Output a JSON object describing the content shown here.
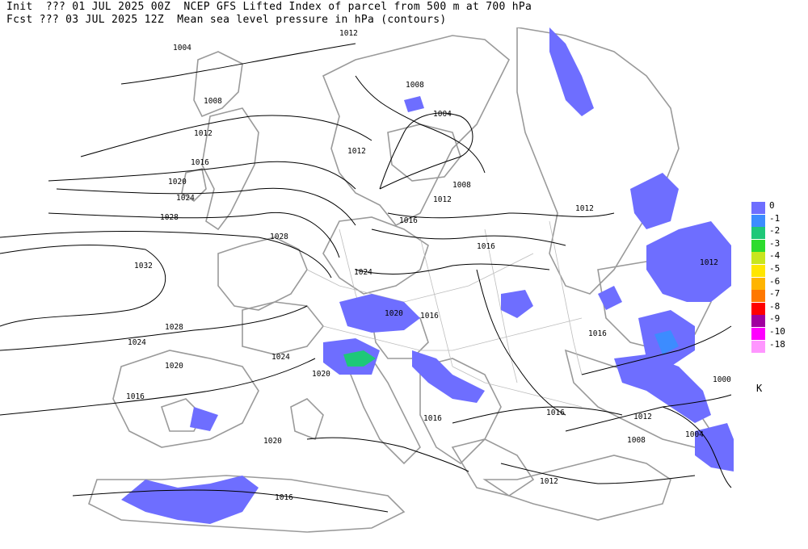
{
  "header": {
    "line1": "Init  ??? 01 JUL 2025 00Z  NCEP GFS Lifted Index of parcel from 500 m at 700 hPa",
    "line2": "Fcst ??? 03 JUL 2025 12Z  Mean sea level pressure in hPa (contours)"
  },
  "legend": {
    "items": [
      {
        "label": "0",
        "color": "#6e6eff"
      },
      {
        "label": "-1",
        "color": "#3c8cff"
      },
      {
        "label": "-2",
        "color": "#1ec878"
      },
      {
        "label": "-3",
        "color": "#2ddc2d"
      },
      {
        "label": "-4",
        "color": "#c8e61e"
      },
      {
        "label": "-5",
        "color": "#ffe600"
      },
      {
        "label": "-6",
        "color": "#ffb400"
      },
      {
        "label": "-7",
        "color": "#ff7800"
      },
      {
        "label": "-8",
        "color": "#ff0000"
      },
      {
        "label": "-9",
        "color": "#a0009f"
      },
      {
        "label": "-10",
        "color": "#ff00ff"
      },
      {
        "label": "-18",
        "color": "#ff96ff"
      }
    ],
    "units": "K"
  },
  "contours": {
    "labels": [
      "1012",
      "1004",
      "1008",
      "1012",
      "1016",
      "1020",
      "1024",
      "1028",
      "1032",
      "1028",
      "1024",
      "1020",
      "1016",
      "1008",
      "1004",
      "1012",
      "1016",
      "1024",
      "1020",
      "1016",
      "1008",
      "1012",
      "1016",
      "1020",
      "1024",
      "1012",
      "1016",
      "1012",
      "1016",
      "1008",
      "1012",
      "1000",
      "1004",
      "1016",
      "1020",
      "1028",
      "1016",
      "1012"
    ]
  }
}
